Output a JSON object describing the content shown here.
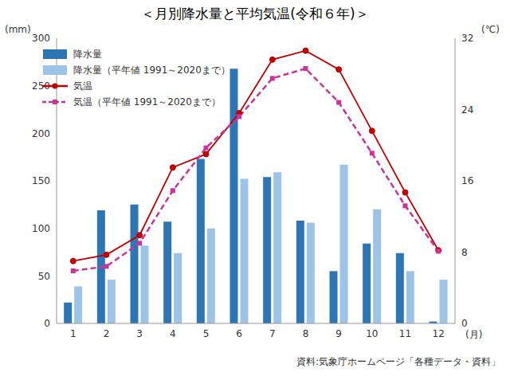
{
  "chart_data": {
    "type": "bar",
    "title": "＜月別降水量と平均気温(令和６年)＞",
    "x_label": "(月)",
    "y_label": "(mm)",
    "y2_label": "(℃)",
    "source": "資料:気象庁ホームページ「各種データ・資料」",
    "categories": [
      "1",
      "2",
      "3",
      "4",
      "5",
      "6",
      "7",
      "8",
      "9",
      "10",
      "11",
      "12"
    ],
    "series": [
      {
        "name": "降水量",
        "type": "bar",
        "color": "#2e75b6",
        "values": [
          22,
          119,
          125,
          107,
          173,
          268,
          154,
          108,
          55,
          84,
          74,
          2
        ]
      },
      {
        "name": "降水量（平年値 1991～2020まで）",
        "type": "bar",
        "color": "#9dc3e6",
        "values": [
          39,
          46,
          82,
          74,
          100,
          152,
          159,
          106,
          167,
          120,
          55,
          46
        ]
      },
      {
        "name": "気温",
        "type": "line",
        "axis": "y2",
        "color": "#c00000",
        "marker": "circle",
        "line_style": "solid",
        "values": [
          7.0,
          7.7,
          9.9,
          17.5,
          19.0,
          23.6,
          29.6,
          30.6,
          28.5,
          21.6,
          14.7,
          8.2
        ]
      },
      {
        "name": "気温（平年値 1991～2020まで）",
        "type": "line",
        "axis": "y2",
        "color": "#cc3399",
        "marker": "square",
        "line_style": "dashed",
        "values": [
          5.9,
          6.4,
          9.0,
          14.9,
          19.7,
          23.2,
          27.5,
          28.6,
          24.8,
          19.1,
          13.2,
          8.1
        ]
      }
    ],
    "ylim": [
      0,
      300
    ],
    "yticks": [
      0,
      50,
      100,
      150,
      200,
      250,
      300
    ],
    "y2lim": [
      0,
      32
    ],
    "y2ticks": [
      0,
      8,
      16,
      24,
      32
    ],
    "grid": false,
    "legend": "upper left"
  }
}
